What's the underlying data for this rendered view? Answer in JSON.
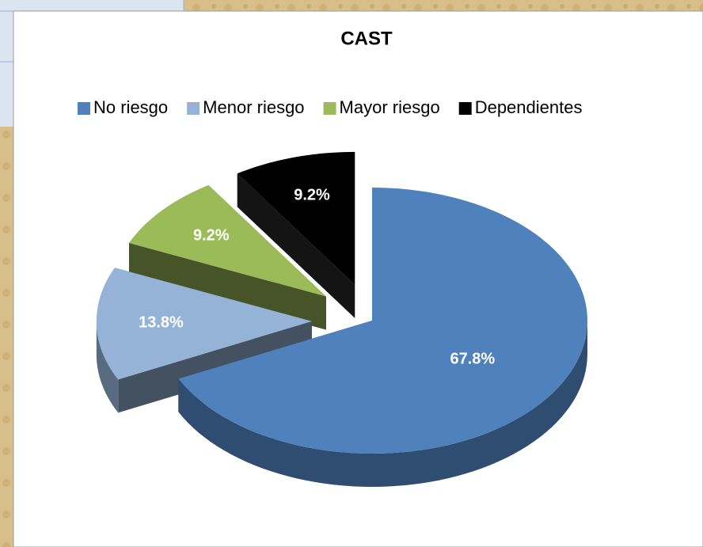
{
  "chart_data": {
    "type": "pie",
    "title": "CAST",
    "categories": [
      "No riesgo",
      "Menor riesgo",
      "Mayor riesgo",
      "Dependientes"
    ],
    "values": [
      67.8,
      13.8,
      9.2,
      9.2
    ],
    "value_labels": [
      "67.8%",
      "13.8%",
      "9.2%",
      "9.2%"
    ],
    "colors": [
      "#4f81bd",
      "#95b3d7",
      "#9bbb59",
      "#000000"
    ],
    "legend": "top"
  }
}
